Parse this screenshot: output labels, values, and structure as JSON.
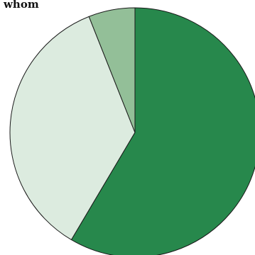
{
  "chart_data": {
    "type": "pie",
    "title": "whom",
    "start_angle_deg": 90,
    "direction": "clockwise",
    "slices": [
      {
        "value": 58.5,
        "color": "#27884c",
        "name": ""
      },
      {
        "value": 35.5,
        "color": "#dcebdf",
        "name": ""
      },
      {
        "value": 6.0,
        "color": "#93bf98",
        "name": ""
      }
    ],
    "legend": "none",
    "data_labels": "none"
  }
}
